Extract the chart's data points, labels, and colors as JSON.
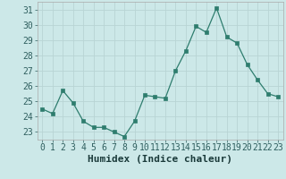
{
  "x": [
    0,
    1,
    2,
    3,
    4,
    5,
    6,
    7,
    8,
    9,
    10,
    11,
    12,
    13,
    14,
    15,
    16,
    17,
    18,
    19,
    20,
    21,
    22,
    23
  ],
  "y": [
    24.5,
    24.2,
    25.7,
    24.9,
    23.7,
    23.3,
    23.3,
    23.0,
    22.7,
    23.7,
    25.4,
    25.3,
    25.2,
    27.0,
    28.3,
    29.9,
    29.5,
    31.1,
    29.2,
    28.8,
    27.4,
    26.4,
    25.5,
    25.3
  ],
  "xlabel": "Humidex (Indice chaleur)",
  "ylim": [
    22.5,
    31.5
  ],
  "yticks": [
    23,
    24,
    25,
    26,
    27,
    28,
    29,
    30,
    31
  ],
  "xticks": [
    0,
    1,
    2,
    3,
    4,
    5,
    6,
    7,
    8,
    9,
    10,
    11,
    12,
    13,
    14,
    15,
    16,
    17,
    18,
    19,
    20,
    21,
    22,
    23
  ],
  "line_color": "#2e7d6e",
  "marker_color": "#2e7d6e",
  "bg_color": "#cce8e8",
  "grid_color": "#b8d4d4",
  "xlabel_fontsize": 8,
  "tick_fontsize": 7,
  "marker_size": 2.5
}
